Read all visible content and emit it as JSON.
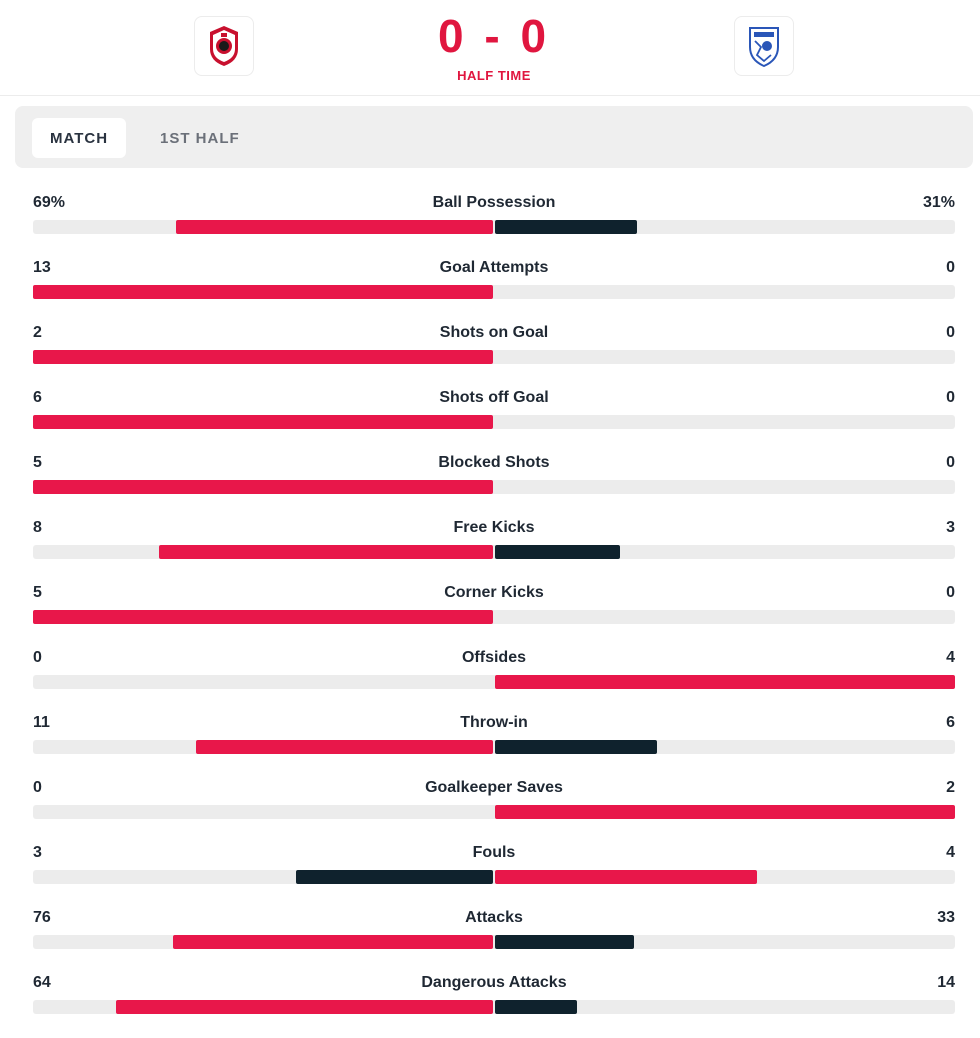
{
  "header": {
    "home_score": "0",
    "away_score": "0",
    "score_separator": "-",
    "status": "HALF TIME",
    "home_logo_icon": "royal-antwerp-crest-icon",
    "away_logo_icon": "drita-crest-icon"
  },
  "tabs": [
    {
      "label": "MATCH",
      "active": true
    },
    {
      "label": "1ST HALF",
      "active": false
    }
  ],
  "colors": {
    "leader": "#e8174a",
    "trailer": "#0f222d",
    "track": "#ececec",
    "accent": "#e0163f"
  },
  "stats": [
    {
      "label": "Ball Possession",
      "home": "69%",
      "away": "31%",
      "home_value": 69,
      "away_value": 31,
      "max": 100
    },
    {
      "label": "Goal Attempts",
      "home": "13",
      "away": "0",
      "home_value": 13,
      "away_value": 0
    },
    {
      "label": "Shots on Goal",
      "home": "2",
      "away": "0",
      "home_value": 2,
      "away_value": 0
    },
    {
      "label": "Shots off Goal",
      "home": "6",
      "away": "0",
      "home_value": 6,
      "away_value": 0
    },
    {
      "label": "Blocked Shots",
      "home": "5",
      "away": "0",
      "home_value": 5,
      "away_value": 0
    },
    {
      "label": "Free Kicks",
      "home": "8",
      "away": "3",
      "home_value": 8,
      "away_value": 3
    },
    {
      "label": "Corner Kicks",
      "home": "5",
      "away": "0",
      "home_value": 5,
      "away_value": 0
    },
    {
      "label": "Offsides",
      "home": "0",
      "away": "4",
      "home_value": 0,
      "away_value": 4
    },
    {
      "label": "Throw-in",
      "home": "11",
      "away": "6",
      "home_value": 11,
      "away_value": 6
    },
    {
      "label": "Goalkeeper Saves",
      "home": "0",
      "away": "2",
      "home_value": 0,
      "away_value": 2
    },
    {
      "label": "Fouls",
      "home": "3",
      "away": "4",
      "home_value": 3,
      "away_value": 4
    },
    {
      "label": "Attacks",
      "home": "76",
      "away": "33",
      "home_value": 76,
      "away_value": 33
    },
    {
      "label": "Dangerous Attacks",
      "home": "64",
      "away": "14",
      "home_value": 64,
      "away_value": 14
    }
  ]
}
